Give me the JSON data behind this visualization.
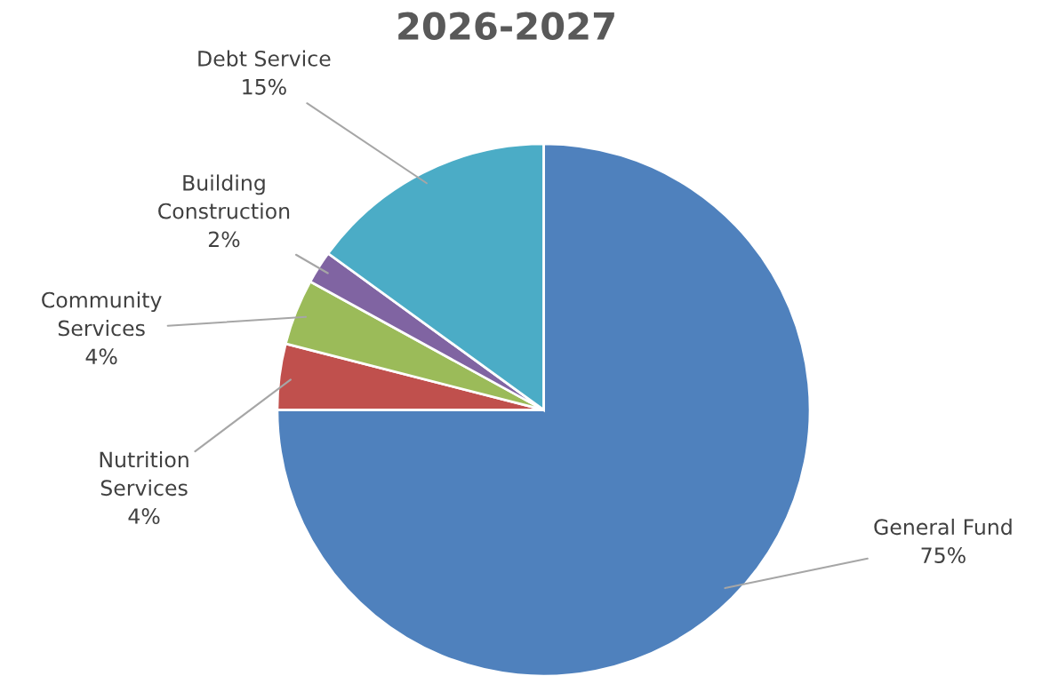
{
  "chart_data": {
    "type": "pie",
    "title": "2026-2027",
    "categories": [
      "General Fund",
      "Nutrition Services",
      "Community Services",
      "Building Construction",
      "Debt Service"
    ],
    "values": [
      75,
      4,
      4,
      2,
      15
    ],
    "value_labels": [
      "75%",
      "4%",
      "4%",
      "2%",
      "15%"
    ],
    "colors": [
      "#4f81bd",
      "#c0504d",
      "#9bbb59",
      "#8064a2",
      "#4bacc6"
    ]
  }
}
